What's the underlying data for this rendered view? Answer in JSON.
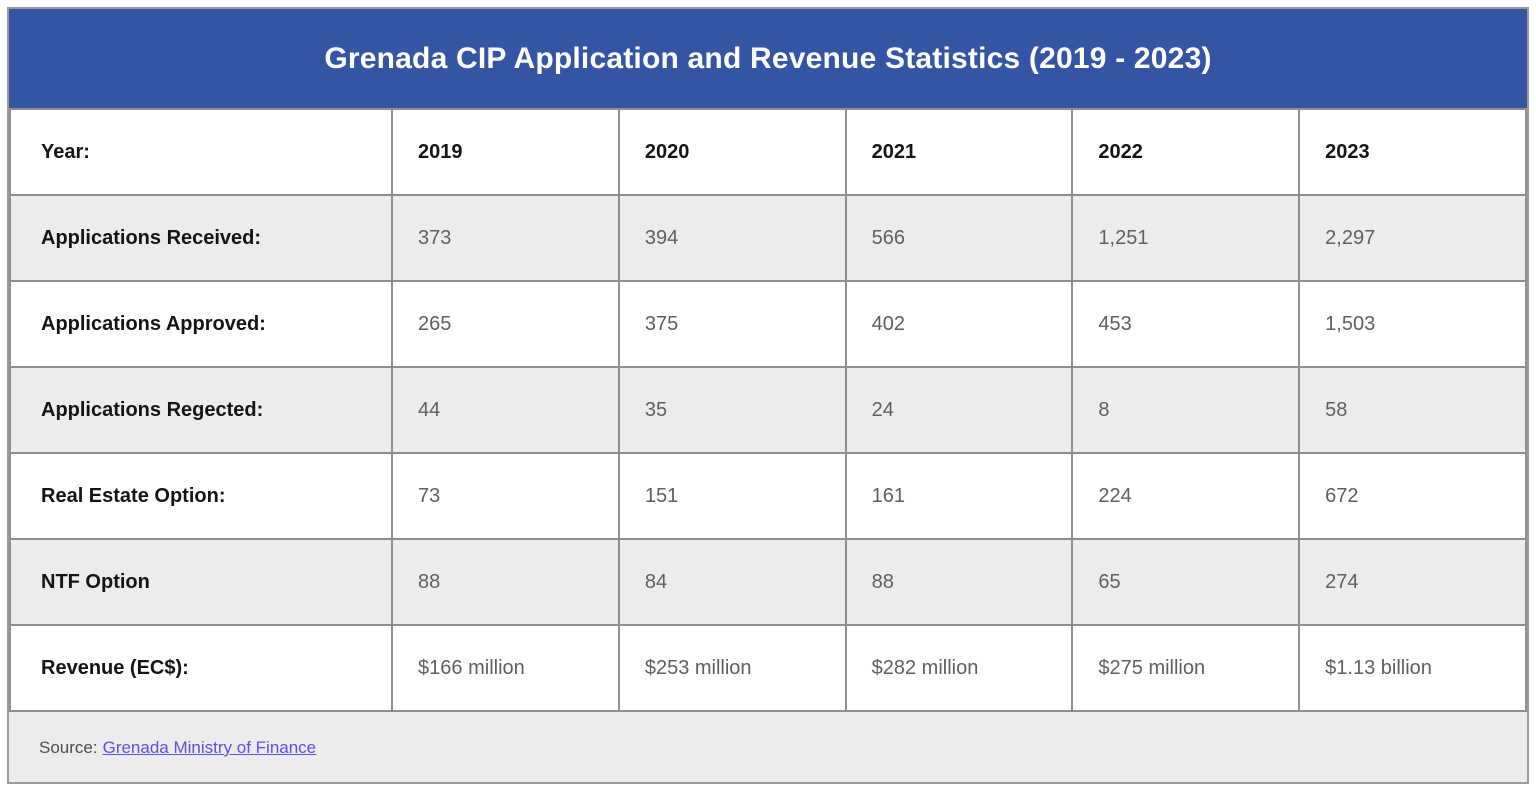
{
  "header": {
    "title": "Grenada CIP Application and Revenue Statistics (2019 - 2023)"
  },
  "table": {
    "year_row": {
      "label": "Year:",
      "values": [
        "2019",
        "2020",
        "2021",
        "2022",
        "2023"
      ]
    },
    "rows": [
      {
        "label": "Applications Received:",
        "values": [
          "373",
          "394",
          "566",
          "1,251",
          "2,297"
        ]
      },
      {
        "label": "Applications Approved:",
        "values": [
          "265",
          "375",
          "402",
          "453",
          "1,503"
        ]
      },
      {
        "label": "Applications Regected:",
        "values": [
          "44",
          "35",
          "24",
          "8",
          "58"
        ]
      },
      {
        "label": "Real Estate Option:",
        "values": [
          "73",
          "151",
          "161",
          "224",
          "672"
        ]
      },
      {
        "label": "NTF Option",
        "values": [
          "88",
          "84",
          "88",
          "65",
          "274"
        ]
      },
      {
        "label": "Revenue (EC$):",
        "values": [
          "$166 million",
          "$253 million",
          "$282 million",
          "$275 million",
          "$1.13 billion"
        ]
      }
    ]
  },
  "footer": {
    "source_prefix": "Source:",
    "source_link_text": "Grenada Ministry of Finance"
  },
  "colors": {
    "header_background": "#3454a4",
    "header_text": "#ffffff",
    "zebra_row_background": "#ececec",
    "cell_border": "#8f8f8f",
    "value_text": "#5f5f5f",
    "label_text": "#141414",
    "link": "#5a51e1"
  },
  "chart_data": {
    "type": "table",
    "title": "Grenada CIP Application and Revenue Statistics (2019 - 2023)",
    "columns": [
      "Year:",
      "2019",
      "2020",
      "2021",
      "2022",
      "2023"
    ],
    "rows": [
      [
        "Applications Received:",
        373,
        394,
        566,
        1251,
        2297
      ],
      [
        "Applications Approved:",
        265,
        375,
        402,
        453,
        1503
      ],
      [
        "Applications Regected:",
        44,
        35,
        24,
        8,
        58
      ],
      [
        "Real Estate Option:",
        73,
        151,
        161,
        224,
        672
      ],
      [
        "NTF Option",
        88,
        84,
        88,
        65,
        274
      ],
      [
        "Revenue (EC$):",
        "$166 million",
        "$253 million",
        "$282 million",
        "$275 million",
        "$1.13 billion"
      ]
    ],
    "source_note": "Source: Grenada Ministry of Finance"
  }
}
